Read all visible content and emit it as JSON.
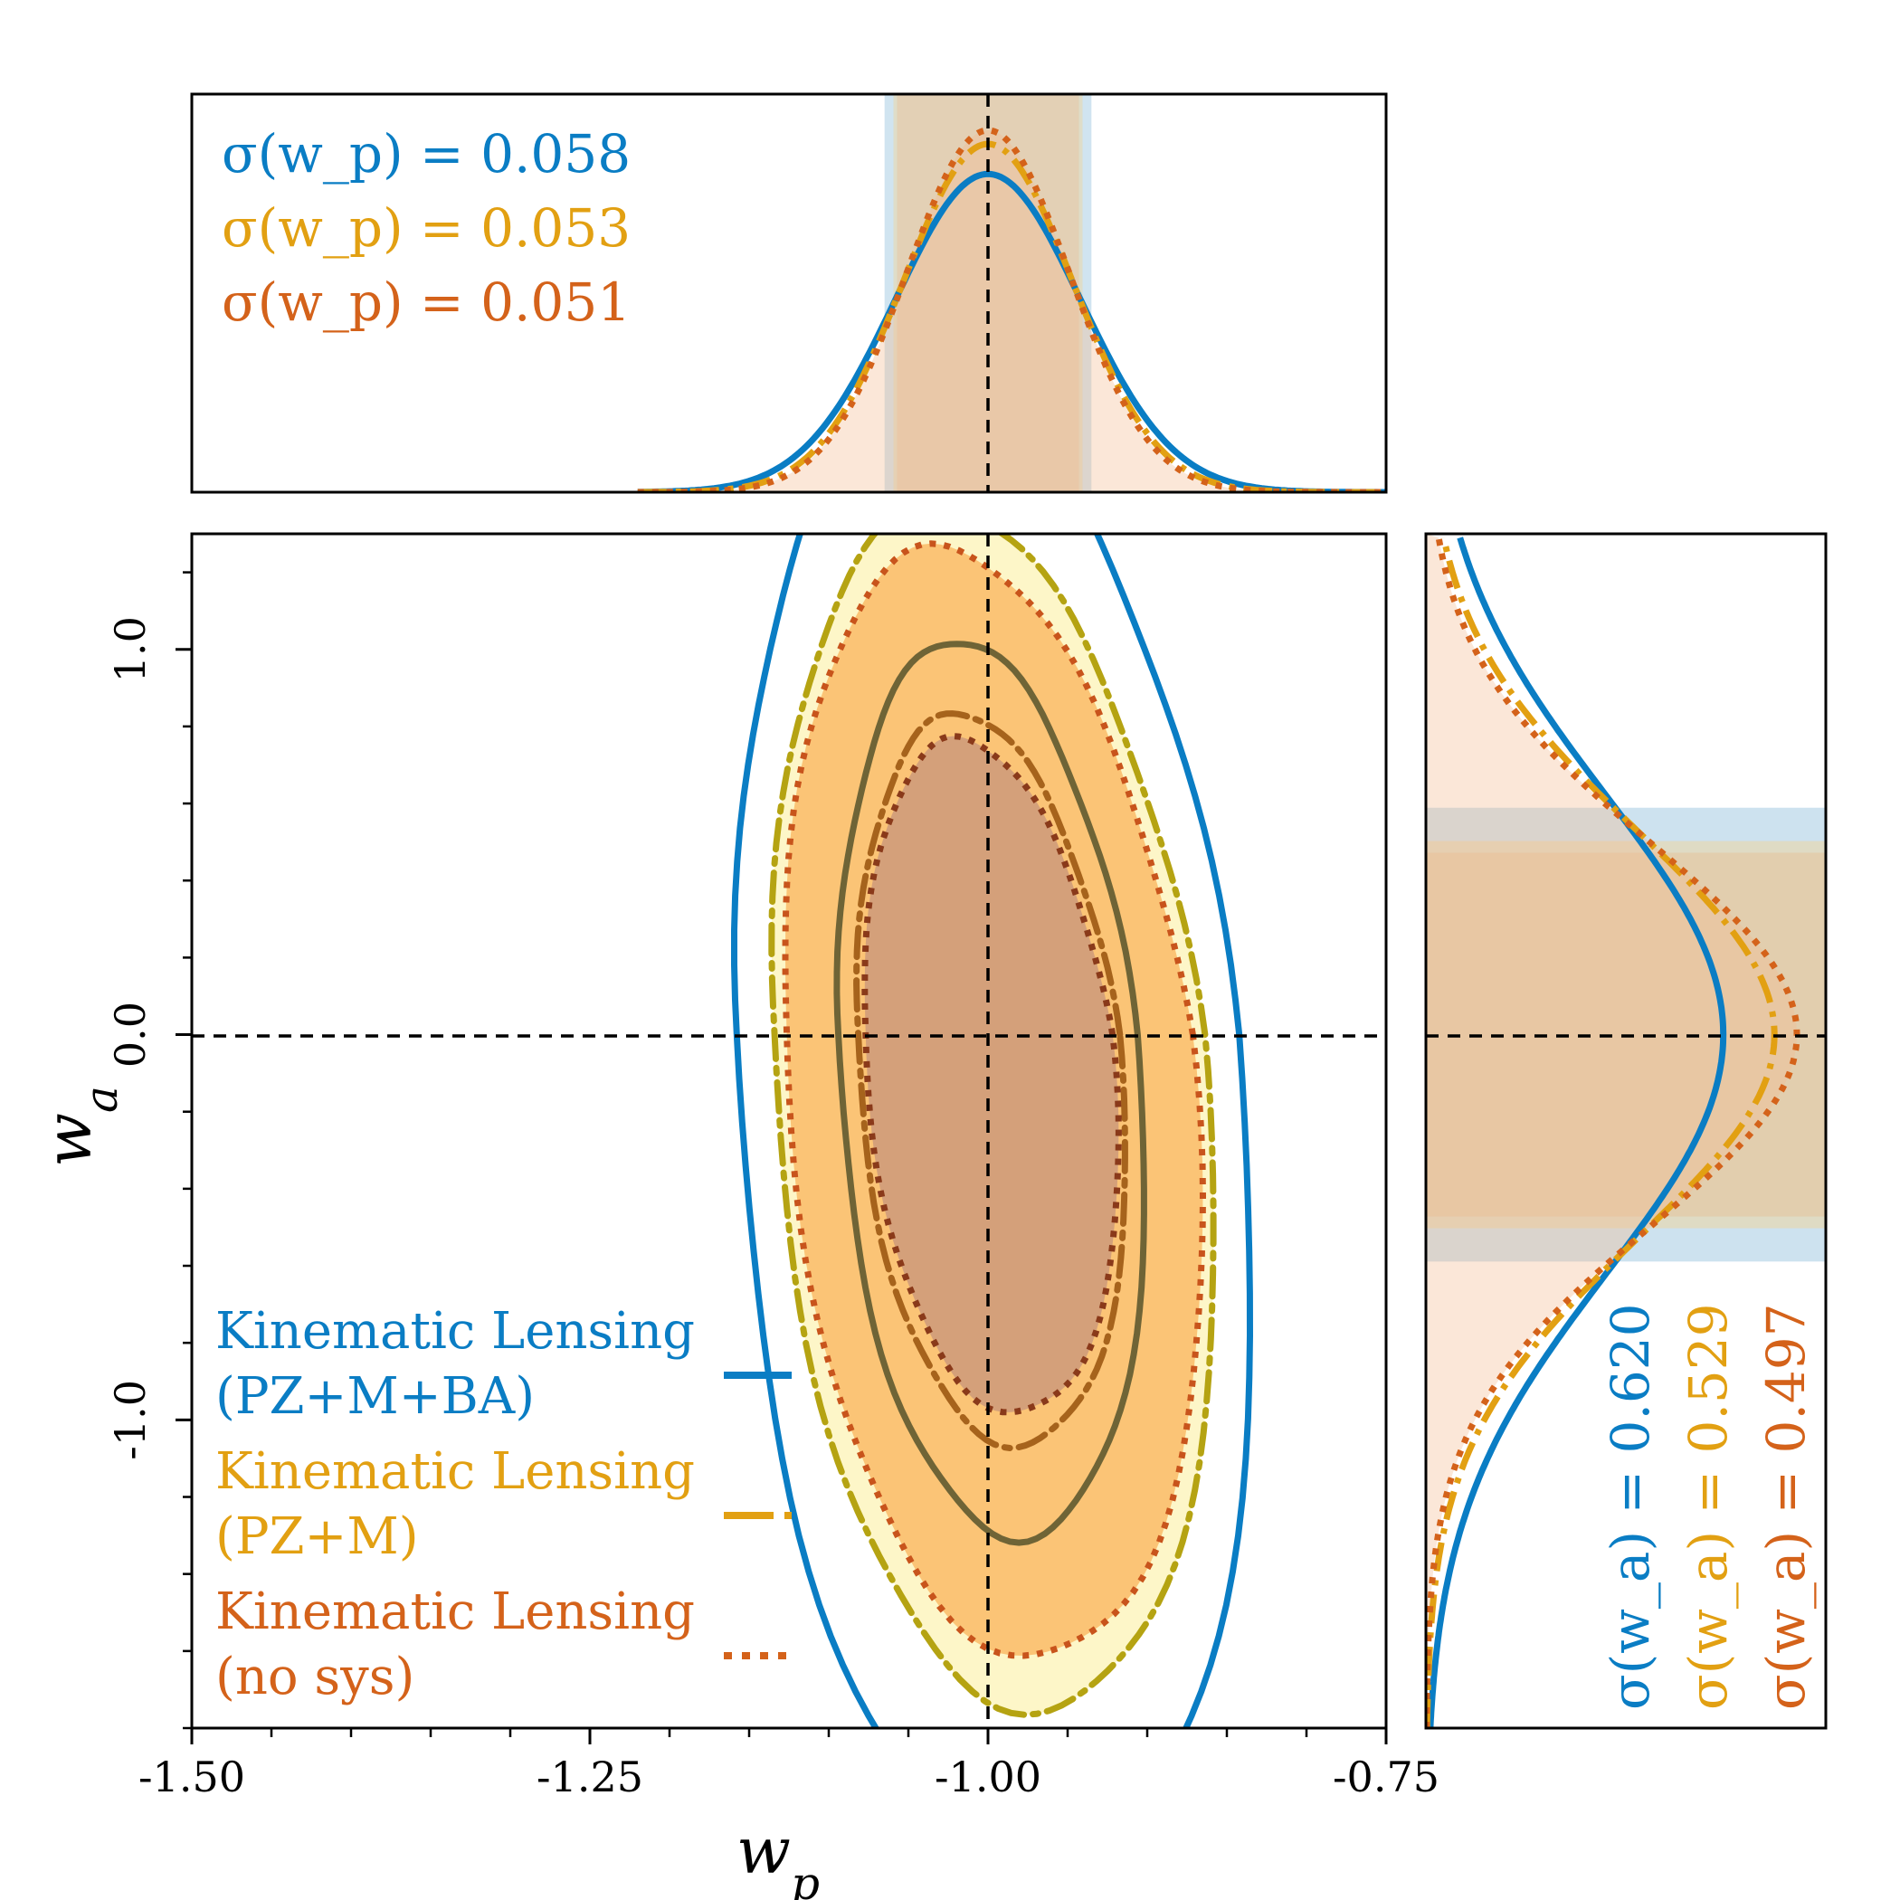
{
  "chart_data": {
    "type": "scatter",
    "subtype": "corner-plot (2D confidence contours + 1D marginal posteriors)",
    "xlabel": "w_p",
    "ylabel": "w_a",
    "xlim": [
      -1.5,
      -0.75
    ],
    "ylim": [
      -1.8,
      1.3
    ],
    "x_ticks": [
      "-1.50",
      "-1.25",
      "-1.00",
      "-0.75"
    ],
    "x_tick_values": [
      -1.5,
      -1.25,
      -1.0,
      -0.75
    ],
    "y_ticks": [
      "-1.0",
      "0.0",
      "1.0"
    ],
    "y_tick_values": [
      -1.0,
      0.0,
      1.0
    ],
    "fiducial": {
      "w_p": -1.0,
      "w_a": 0.0
    },
    "series": [
      {
        "name": "Kinematic Lensing (PZ+M+BA)",
        "legend_lines": [
          "Kinematic Lensing",
          "(PZ+M+BA)"
        ],
        "color": "#0a7dc4",
        "linestyle": "solid",
        "sigma_wp": 0.058,
        "sigma_wa": 0.62,
        "sigma_wp_label": "σ(w_p) = 0.058",
        "sigma_wa_label": "σ(w_a) = 0.620",
        "center": [
          -1.0,
          0.0
        ]
      },
      {
        "name": "Kinematic Lensing (PZ+M)",
        "legend_lines": [
          "Kinematic Lensing",
          "(PZ+M)"
        ],
        "color": "#e2a012",
        "linestyle": "dashdot",
        "sigma_wp": 0.053,
        "sigma_wa": 0.529,
        "sigma_wp_label": "σ(w_p) = 0.053",
        "sigma_wa_label": "σ(w_a) = 0.529",
        "center": [
          -1.0,
          0.0
        ]
      },
      {
        "name": "Kinematic Lensing (no sys)",
        "legend_lines": [
          "Kinematic Lensing",
          "(no sys)"
        ],
        "color": "#d4621a",
        "linestyle": "dotted",
        "sigma_wp": 0.051,
        "sigma_wa": 0.497,
        "sigma_wp_label": "σ(w_p) = 0.051",
        "sigma_wa_label": "σ(w_a) = 0.497",
        "center": [
          -1.0,
          0.0
        ]
      }
    ],
    "legend_position": "lower-left",
    "grid": false
  }
}
